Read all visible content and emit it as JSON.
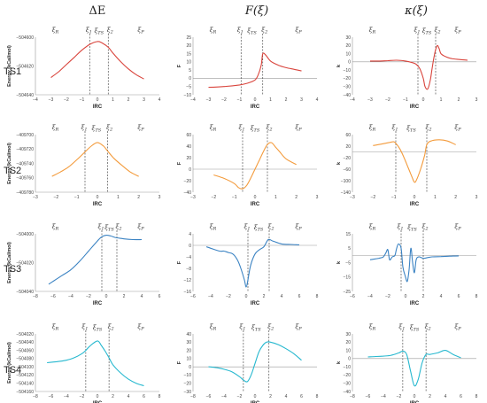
{
  "colors": {
    "TS1": "#d9443c",
    "TS2": "#f39b3c",
    "TS3": "#3b83c3",
    "TS4": "#26b8cf"
  },
  "column_titles": [
    "ΔE",
    "F(ξ)",
    "κ(ξ)"
  ],
  "zeta_labels": {
    "R": "ξR",
    "1": "ξ1",
    "TS": "ξTS",
    "2": "ξ2",
    "P": "ξP"
  },
  "chart_data": [
    {
      "type": "line",
      "row": "TS1",
      "col": 0,
      "xlabel": "IRC",
      "ylabel": "Energy (kCal/mol)",
      "xlim": [
        -4,
        4
      ],
      "xticks": [
        -4,
        -3,
        -2,
        -1,
        0,
        1,
        2,
        3,
        4
      ],
      "ylim": [
        -504640,
        -504600
      ],
      "yticks": [
        -504640,
        -504620,
        -504600
      ],
      "vlines": [
        -0.5,
        0.7
      ],
      "x": [
        -3,
        -2.5,
        -2,
        -1.5,
        -1,
        -0.5,
        0,
        0.3,
        0.7,
        1,
        1.5,
        2,
        2.5,
        3
      ],
      "y": [
        -504628,
        -504624,
        -504619,
        -504614,
        -504609,
        -504605,
        -504603,
        -504604,
        -504607,
        -504611,
        -504617,
        -504622,
        -504626,
        -504629
      ]
    },
    {
      "type": "line",
      "row": "TS1",
      "col": 1,
      "xlabel": "IRC",
      "ylabel": "F",
      "xlim": [
        -4,
        4
      ],
      "xticks": [
        -4,
        -3,
        -2,
        -1,
        0,
        1,
        2,
        3,
        4
      ],
      "ylim": [
        -10,
        25
      ],
      "yticks": [
        -10,
        -5,
        0,
        5,
        10,
        15,
        20,
        25
      ],
      "vlines": [
        -0.9,
        0.5
      ],
      "x": [
        -3,
        -2,
        -1,
        -0.5,
        0,
        0.2,
        0.4,
        0.5,
        0.7,
        1,
        1.5,
        2,
        2.5,
        3
      ],
      "y": [
        -5.5,
        -5,
        -4,
        -3,
        -1,
        2,
        8,
        15,
        14,
        10.5,
        8,
        6.5,
        5.5,
        4.5
      ]
    },
    {
      "type": "line",
      "row": "TS1",
      "col": 2,
      "xlabel": "IRC",
      "ylabel": "k",
      "xlim": [
        -4,
        3
      ],
      "xticks": [
        -4,
        -3,
        -2,
        -1,
        0,
        1,
        2,
        3
      ],
      "ylim": [
        -40,
        30
      ],
      "yticks": [
        -40,
        -30,
        -20,
        -10,
        0,
        10,
        20,
        30
      ],
      "vlines": [
        -0.3,
        0.7
      ],
      "x": [
        -3,
        -2.5,
        -2,
        -1.5,
        -1,
        -0.6,
        -0.4,
        -0.2,
        0,
        0.1,
        0.25,
        0.4,
        0.5,
        0.6,
        0.7,
        0.8,
        0.9,
        1,
        1.3,
        1.6,
        2,
        2.5
      ],
      "y": [
        1,
        1,
        1.5,
        2,
        1,
        -1,
        -3,
        -8,
        -20,
        -30,
        -33,
        -22,
        -8,
        5,
        15,
        20,
        16,
        10,
        6,
        4,
        3,
        2
      ]
    },
    {
      "type": "line",
      "row": "TS2",
      "col": 0,
      "xlabel": "IRC",
      "ylabel": "Energy (kCal/mol)",
      "xlim": [
        -3,
        3
      ],
      "xticks": [
        -3,
        -2,
        -1,
        0,
        1,
        2,
        3
      ],
      "ylim": [
        -409780,
        -409700
      ],
      "yticks": [
        -409780,
        -409760,
        -409740,
        -409720,
        -409700
      ],
      "vlines": [
        -0.6,
        0.5
      ],
      "x": [
        -2.2,
        -1.8,
        -1.4,
        -1,
        -0.6,
        -0.3,
        0,
        0.3,
        0.5,
        0.8,
        1.2,
        1.6,
        2
      ],
      "y": [
        -409758,
        -409752,
        -409745,
        -409735,
        -409724,
        -409716,
        -409711,
        -409716,
        -409723,
        -409733,
        -409743,
        -409752,
        -409758
      ]
    },
    {
      "type": "line",
      "row": "TS2",
      "col": 1,
      "xlabel": "IRC",
      "ylabel": "F",
      "xlim": [
        -3,
        3
      ],
      "xticks": [
        -3,
        -2,
        -1,
        0,
        1,
        2,
        3
      ],
      "ylim": [
        -40,
        60
      ],
      "yticks": [
        -40,
        -30,
        -20,
        -10,
        0,
        10,
        20,
        30,
        40,
        50,
        60
      ],
      "vlines": [
        -0.6,
        0.6
      ],
      "x": [
        -2,
        -1.5,
        -1,
        -0.8,
        -0.6,
        -0.4,
        -0.2,
        0,
        0.2,
        0.4,
        0.6,
        0.8,
        1,
        1.2,
        1.5,
        2
      ],
      "y": [
        -10,
        -16,
        -25,
        -32,
        -34,
        -28,
        -15,
        0,
        15,
        30,
        43,
        46,
        38,
        30,
        18,
        8
      ]
    },
    {
      "type": "line",
      "row": "TS2",
      "col": 2,
      "xlabel": "IRC",
      "ylabel": "k",
      "xlim": [
        -3,
        3
      ],
      "xticks": [
        -3,
        -2,
        -1,
        0,
        1,
        2,
        3
      ],
      "ylim": [
        -140,
        60
      ],
      "yticks": [
        -140,
        -120,
        -100,
        -80,
        -60,
        -40,
        -20,
        0,
        20,
        40,
        60
      ],
      "vlines": [
        -0.9,
        0.6
      ],
      "x": [
        -2,
        -1.6,
        -1.2,
        -1,
        -0.9,
        -0.7,
        -0.5,
        -0.3,
        -0.1,
        0,
        0.1,
        0.3,
        0.5,
        0.6,
        0.8,
        1.2,
        1.6,
        2
      ],
      "y": [
        22,
        27,
        33,
        35,
        30,
        10,
        -20,
        -55,
        -90,
        -105,
        -98,
        -60,
        -10,
        25,
        38,
        42,
        38,
        25
      ]
    },
    {
      "type": "line",
      "row": "TS3",
      "col": 0,
      "xlabel": "IRC",
      "ylabel": "Energy (kCal/mol)",
      "xlim": [
        -8,
        6
      ],
      "xticks": [
        -8,
        -6,
        -4,
        -2,
        0,
        2,
        4,
        6
      ],
      "ylim": [
        -504040,
        -504000
      ],
      "yticks": [
        -504040,
        -504020,
        -504000
      ],
      "vlines": [
        -0.5,
        1.2
      ],
      "x": [
        -6.5,
        -6,
        -5,
        -4,
        -3,
        -2,
        -1,
        -0.5,
        0,
        0.5,
        1,
        1.5,
        2,
        3,
        4
      ],
      "y": [
        -504035,
        -504033,
        -504029,
        -504025,
        -504019,
        -504012,
        -504005,
        -504002,
        -504001,
        -504001.5,
        -504002.5,
        -504003,
        -504003.5,
        -504004,
        -504004
      ]
    },
    {
      "type": "line",
      "row": "TS3",
      "col": 1,
      "xlabel": "IRC",
      "ylabel": "F",
      "xlim": [
        -6,
        8
      ],
      "xticks": [
        -6,
        -4,
        -2,
        0,
        2,
        4,
        6,
        8
      ],
      "ylim": [
        -16,
        4
      ],
      "yticks": [
        -16,
        -14,
        -12,
        -10,
        -8,
        -6,
        -4,
        -2,
        0,
        2,
        4
      ],
      "vlines": [
        0.2,
        2.6
      ],
      "x": [
        -4.5,
        -4,
        -3,
        -2.5,
        -2,
        -1.5,
        -1,
        -0.6,
        -0.2,
        0,
        0.2,
        0.5,
        1,
        1.5,
        2,
        2.5,
        3,
        4,
        5,
        6
      ],
      "y": [
        -0.5,
        -1,
        -2,
        -2,
        -2.5,
        -3,
        -5,
        -8,
        -12,
        -14.5,
        -12,
        -7,
        -3,
        -1.5,
        -0.5,
        2,
        1.5,
        0.5,
        0.3,
        0.2
      ]
    },
    {
      "type": "line",
      "row": "TS3",
      "col": 2,
      "xlabel": "IRC",
      "ylabel": "k",
      "xlim": [
        -6,
        8
      ],
      "xticks": [
        -6,
        -4,
        -2,
        0,
        2,
        4,
        6,
        8
      ],
      "ylim": [
        -25,
        15
      ],
      "yticks": [
        -25,
        -20,
        -15,
        -10,
        -5,
        0,
        5,
        10,
        15
      ],
      "vlines": [
        -0.5,
        2
      ],
      "x": [
        -4,
        -3.5,
        -3,
        -2.5,
        -2.2,
        -2,
        -1.8,
        -1.5,
        -1.2,
        -1,
        -0.8,
        -0.5,
        -0.3,
        0,
        0.2,
        0.4,
        0.6,
        0.8,
        1,
        1.2,
        1.5,
        2,
        2.5,
        3,
        4,
        5,
        6
      ],
      "y": [
        -3,
        -2.5,
        -2,
        -1,
        2,
        4,
        -3,
        -1,
        0,
        5,
        8,
        5,
        -8,
        -15,
        -18,
        -10,
        5,
        -5,
        -12,
        -3,
        -1,
        -2,
        -1.5,
        -1,
        -0.8,
        -0.5,
        -0.3
      ]
    },
    {
      "type": "line",
      "row": "TS4",
      "col": 0,
      "xlabel": "IRC",
      "ylabel": "Energy (kCal/mol)",
      "xlim": [
        -8,
        8
      ],
      "xticks": [
        -8,
        -6,
        -4,
        -2,
        0,
        2,
        4,
        6,
        8
      ],
      "ylim": [
        -504160,
        -504020
      ],
      "yticks": [
        -504160,
        -504140,
        -504120,
        -504100,
        -504080,
        -504060,
        -504040,
        -504020
      ],
      "vlines": [
        -1.5,
        1.5
      ],
      "x": [
        -6.5,
        -5,
        -4,
        -3,
        -2,
        -1.5,
        -1,
        0,
        0.5,
        1,
        1.5,
        2,
        3,
        4,
        5,
        6
      ],
      "y": [
        -504090,
        -504087,
        -504084,
        -504078,
        -504068,
        -504060,
        -504050,
        -504037,
        -504048,
        -504062,
        -504078,
        -504095,
        -504115,
        -504130,
        -504140,
        -504146
      ]
    },
    {
      "type": "line",
      "row": "TS4",
      "col": 1,
      "xlabel": "IRC",
      "ylabel": "F",
      "xlim": [
        -8,
        8
      ],
      "xticks": [
        -8,
        -6,
        -4,
        -2,
        0,
        2,
        4,
        6,
        8
      ],
      "ylim": [
        -30,
        40
      ],
      "yticks": [
        -30,
        -20,
        -10,
        0,
        10,
        20,
        30,
        40
      ],
      "vlines": [
        -1.5,
        1.8
      ],
      "x": [
        -6,
        -5,
        -4,
        -3,
        -2,
        -1.5,
        -1,
        -0.5,
        0,
        0.5,
        1,
        1.5,
        2,
        3,
        4,
        5,
        6
      ],
      "y": [
        0,
        -1,
        -3,
        -6,
        -12,
        -16,
        -18,
        -10,
        4,
        18,
        26,
        30,
        30,
        27,
        22,
        16,
        8
      ]
    },
    {
      "type": "line",
      "row": "TS4",
      "col": 2,
      "xlabel": "IRC",
      "ylabel": "k",
      "xlim": [
        -8,
        8
      ],
      "xticks": [
        -8,
        -6,
        -4,
        -2,
        0,
        2,
        4,
        6,
        8
      ],
      "ylim": [
        -40,
        30
      ],
      "yticks": [
        -40,
        -30,
        -20,
        -10,
        0,
        10,
        20,
        30
      ],
      "vlines": [
        -1.5,
        1.5
      ],
      "x": [
        -6,
        -5,
        -4,
        -3,
        -2,
        -1.5,
        -1,
        -0.5,
        0,
        0.5,
        1,
        1.5,
        2,
        3,
        4,
        5,
        6
      ],
      "y": [
        2,
        2.5,
        3,
        4,
        7,
        9,
        5,
        -15,
        -33,
        -25,
        -5,
        5,
        5,
        7,
        10,
        5,
        1
      ]
    }
  ]
}
